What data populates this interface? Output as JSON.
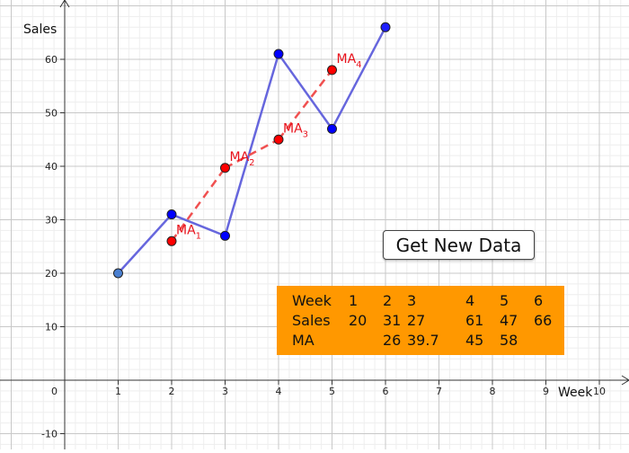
{
  "chart_data": {
    "type": "line",
    "xlabel": "Week",
    "ylabel": "Sales",
    "xlim": [
      -1.1,
      10.7
    ],
    "ylim": [
      -12,
      70
    ],
    "x_ticks": [
      "1",
      "2",
      "3",
      "4",
      "5",
      "6",
      "7",
      "8",
      "9",
      "10"
    ],
    "y_ticks": [
      "-10",
      "10",
      "20",
      "30",
      "40",
      "50",
      "60"
    ],
    "origin_label": "0",
    "grid": true,
    "series": [
      {
        "points": [
          {
            "x": 1,
            "y": 20
          },
          {
            "x": 2,
            "y": 31
          },
          {
            "x": 3,
            "y": 27
          },
          {
            "x": 4,
            "y": 61
          },
          {
            "x": 5,
            "y": 47
          },
          {
            "x": 6,
            "y": 66
          }
        ],
        "color": "#0000ff",
        "line_color": "#6666dd"
      },
      {
        "points": [
          {
            "x": 2,
            "y": 26,
            "label": "MA",
            "sub": "1"
          },
          {
            "x": 3,
            "y": 39.7,
            "label": "MA",
            "sub": "2"
          },
          {
            "x": 4,
            "y": 45,
            "label": "MA",
            "sub": "3"
          },
          {
            "x": 5,
            "y": 58,
            "label": "MA",
            "sub": "4"
          }
        ],
        "color": "#ff0000",
        "line_color": "#f05050",
        "dashed": true
      }
    ]
  },
  "button": {
    "label": "Get New Data"
  },
  "table": {
    "rows": [
      [
        "Week",
        "1",
        "2",
        "3",
        "4",
        "5",
        "6"
      ],
      [
        "Sales",
        "20",
        "31",
        "27",
        "61",
        "47",
        "66"
      ],
      [
        "MA",
        "",
        "26",
        "39.7",
        "45",
        "58",
        ""
      ]
    ],
    "background": "#ff9800"
  }
}
